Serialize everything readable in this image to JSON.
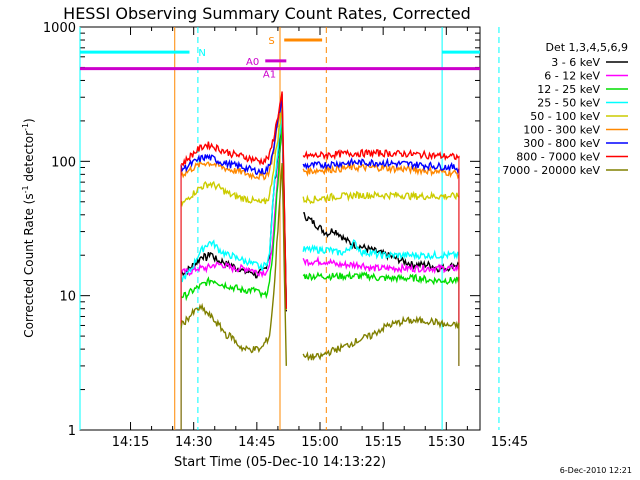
{
  "chart_data": {
    "type": "line",
    "title": "HESSI Observing Summary Count Rates, Corrected",
    "xlabel": "Start Time (05-Dec-10 14:13:22)",
    "ylabel_main": "Corrected Count Rate (s",
    "ylabel_sup1": "-1",
    "ylabel_mid": " detector",
    "ylabel_sup2": "-1",
    "ylabel_end": ")",
    "yscale": "log",
    "ylim": [
      1,
      1000
    ],
    "xlim_minutes": [
      -12,
      83
    ],
    "xticks": [
      {
        "minute": 0,
        "label": "14:15"
      },
      {
        "minute": 15,
        "label": "14:30"
      },
      {
        "minute": 30,
        "label": "14:45"
      },
      {
        "minute": 45,
        "label": "15:00"
      },
      {
        "minute": 60,
        "label": "15:15"
      },
      {
        "minute": 75,
        "label": "15:30"
      },
      {
        "minute": 90,
        "label": "15:45"
      }
    ],
    "yticks": [
      {
        "value": 1,
        "label": "1"
      },
      {
        "value": 10,
        "label": "10"
      },
      {
        "value": 100,
        "label": "100"
      },
      {
        "value": 1000,
        "label": "1000"
      }
    ],
    "legend_title": "Det 1,3,4,5,6,9",
    "legend_position": "right",
    "series": [
      {
        "name": "3 - 6 keV",
        "color": "#000000",
        "x": [
          12,
          13,
          14,
          15,
          16,
          17,
          18,
          19,
          20,
          21,
          22,
          23,
          24,
          25,
          26,
          27,
          28,
          29,
          30,
          31,
          32,
          33,
          34,
          36,
          37,
          40,
          41,
          42,
          43,
          44,
          45,
          46,
          47,
          48,
          49,
          50,
          51,
          52,
          53,
          55,
          57,
          59,
          61,
          63,
          65,
          67,
          69,
          71,
          73,
          75,
          77,
          78
        ],
        "y": [
          15,
          15,
          16,
          17,
          18,
          20,
          19,
          21,
          19,
          18,
          18,
          17,
          17,
          16,
          16,
          15,
          15,
          15,
          14,
          15,
          16,
          20,
          60,
          200,
          8,
          null,
          40,
          38,
          36,
          34,
          32,
          30,
          29,
          31,
          30,
          28,
          26,
          25,
          24,
          23,
          22,
          21,
          20,
          19,
          18,
          17,
          17,
          17,
          16,
          16,
          17,
          17
        ]
      },
      {
        "name": "6 - 12 keV",
        "color": "#ff00ff",
        "x": [
          12,
          14,
          16,
          18,
          20,
          22,
          24,
          26,
          28,
          30,
          32,
          33,
          34,
          36,
          37,
          40,
          41,
          43,
          45,
          47,
          49,
          51,
          53,
          55,
          57,
          59,
          61,
          63,
          65,
          67,
          69,
          71,
          73,
          75,
          77,
          78
        ],
        "y": [
          15,
          15,
          16,
          16,
          17,
          17,
          16,
          16,
          16,
          15,
          15,
          16,
          30,
          200,
          8,
          null,
          18,
          18,
          18,
          18,
          17,
          17,
          17,
          17,
          16,
          16,
          16,
          16,
          16,
          16,
          16,
          16,
          16,
          16,
          16,
          16
        ]
      },
      {
        "name": "12 - 25 keV",
        "color": "#00dd00",
        "x": [
          12,
          13,
          14,
          15,
          16,
          17,
          18,
          19,
          20,
          21,
          22,
          23,
          24,
          25,
          26,
          27,
          28,
          29,
          30,
          31,
          32,
          33,
          34,
          36,
          37,
          40,
          41,
          43,
          45,
          47,
          49,
          51,
          53,
          55,
          57,
          59,
          61,
          63,
          65,
          67,
          69,
          71,
          73,
          75,
          77,
          78
        ],
        "y": [
          10,
          10,
          10.5,
          11,
          11.5,
          12,
          12.5,
          13,
          13,
          12.5,
          12,
          12,
          11.5,
          11.5,
          11,
          11,
          11,
          11,
          11,
          10,
          10,
          12,
          25,
          200,
          8,
          null,
          14,
          14,
          14,
          14,
          14,
          14,
          14,
          14,
          14,
          13.5,
          13.5,
          13.5,
          13.5,
          13.5,
          13.5,
          13,
          13,
          13,
          13,
          13
        ]
      },
      {
        "name": "25 - 50 keV",
        "color": "#00ffff",
        "x": [
          12,
          13,
          14,
          15,
          16,
          17,
          18,
          19,
          20,
          21,
          22,
          23,
          24,
          25,
          26,
          27,
          28,
          29,
          30,
          31,
          32,
          33,
          34,
          36,
          37,
          40,
          41,
          43,
          45,
          47,
          49,
          51,
          53,
          55,
          57,
          59,
          61,
          63,
          65,
          67,
          69,
          71,
          73,
          75,
          77,
          78
        ],
        "y": [
          13,
          14,
          15,
          17,
          20,
          22,
          24,
          25,
          24,
          22,
          21,
          20,
          20,
          19,
          19,
          18,
          18,
          17,
          17,
          16,
          17,
          20,
          60,
          250,
          8,
          null,
          22,
          22,
          22,
          22,
          21,
          21,
          25,
          21,
          21,
          20,
          20,
          20,
          20,
          20,
          20,
          20,
          20,
          20,
          20,
          20
        ]
      },
      {
        "name": "50 - 100 keV",
        "color": "#cccc00",
        "x": [
          12,
          13,
          14,
          15,
          16,
          17,
          18,
          19,
          20,
          21,
          22,
          23,
          24,
          25,
          26,
          27,
          28,
          29,
          30,
          31,
          32,
          33,
          34,
          36,
          37,
          40,
          41,
          43,
          45,
          47,
          49,
          51,
          53,
          55,
          57,
          59,
          61,
          63,
          65,
          67,
          69,
          71,
          73,
          75,
          77,
          78
        ],
        "y": [
          48,
          50,
          55,
          58,
          62,
          65,
          67,
          68,
          66,
          64,
          61,
          58,
          56,
          55,
          54,
          53,
          52,
          51,
          50,
          49,
          50,
          55,
          90,
          250,
          8,
          null,
          52,
          52,
          53,
          54,
          55,
          55,
          56,
          56,
          56,
          56,
          56,
          56,
          56,
          55,
          55,
          55,
          55,
          55,
          55,
          55
        ]
      },
      {
        "name": "100 - 300 keV",
        "color": "#ff8800",
        "x": [
          12,
          13,
          14,
          15,
          16,
          17,
          18,
          19,
          20,
          21,
          22,
          23,
          24,
          25,
          26,
          27,
          28,
          29,
          30,
          31,
          32,
          33,
          34,
          36,
          37,
          40,
          41,
          43,
          45,
          47,
          49,
          51,
          53,
          55,
          57,
          59,
          61,
          63,
          65,
          67,
          69,
          71,
          73,
          75,
          77,
          78
        ],
        "y": [
          80,
          82,
          86,
          90,
          93,
          96,
          98,
          97,
          95,
          92,
          90,
          88,
          86,
          85,
          84,
          82,
          80,
          79,
          78,
          77,
          78,
          85,
          120,
          300,
          8,
          null,
          85,
          85,
          86,
          87,
          88,
          89,
          90,
          90,
          90,
          90,
          89,
          88,
          88,
          87,
          86,
          85,
          84,
          83,
          82,
          80
        ]
      },
      {
        "name": "300 - 800 keV",
        "color": "#0000ff",
        "x": [
          12,
          13,
          14,
          15,
          16,
          17,
          18,
          19,
          20,
          21,
          22,
          23,
          24,
          25,
          26,
          27,
          28,
          29,
          30,
          31,
          32,
          33,
          34,
          36,
          37,
          40,
          41,
          43,
          45,
          47,
          49,
          51,
          53,
          55,
          57,
          59,
          61,
          63,
          65,
          67,
          69,
          71,
          73,
          75,
          77,
          78
        ],
        "y": [
          88,
          90,
          94,
          98,
          102,
          106,
          108,
          106,
          104,
          100,
          98,
          96,
          94,
          93,
          92,
          90,
          88,
          86,
          85,
          84,
          85,
          92,
          130,
          300,
          8,
          null,
          93,
          93,
          94,
          95,
          96,
          97,
          98,
          98,
          98,
          98,
          97,
          96,
          96,
          95,
          94,
          93,
          92,
          91,
          90,
          88
        ]
      },
      {
        "name": "800 - 7000 keV",
        "color": "#ff0000",
        "x": [
          12,
          13,
          14,
          15,
          16,
          17,
          18,
          19,
          20,
          21,
          22,
          23,
          24,
          25,
          26,
          27,
          28,
          29,
          30,
          31,
          32,
          33,
          34,
          36,
          37,
          40,
          41,
          43,
          45,
          47,
          49,
          51,
          53,
          55,
          57,
          59,
          61,
          63,
          65,
          67,
          69,
          71,
          73,
          75,
          77,
          78
        ],
        "y": [
          95,
          100,
          108,
          115,
          122,
          128,
          133,
          132,
          128,
          124,
          120,
          117,
          114,
          112,
          110,
          108,
          106,
          104,
          102,
          100,
          102,
          110,
          150,
          320,
          8,
          null,
          110,
          110,
          111,
          112,
          113,
          114,
          115,
          115,
          115,
          115,
          115,
          114,
          114,
          113,
          112,
          111,
          110,
          109,
          108,
          106
        ]
      },
      {
        "name": "7000 - 20000 keV",
        "color": "#808000",
        "x": [
          12,
          13,
          14,
          15,
          16,
          17,
          18,
          19,
          20,
          21,
          22,
          23,
          24,
          25,
          26,
          27,
          28,
          29,
          30,
          31,
          32,
          33,
          34,
          36,
          37,
          40,
          41,
          43,
          45,
          47,
          49,
          51,
          53,
          55,
          57,
          59,
          61,
          63,
          65,
          67,
          69,
          71,
          73,
          75,
          77,
          78
        ],
        "y": [
          6,
          6.5,
          7,
          7.5,
          8,
          8,
          7.5,
          7,
          6.5,
          6,
          5.5,
          5,
          5,
          4.5,
          4.2,
          4,
          4,
          4,
          4,
          4,
          4.5,
          5,
          10,
          100,
          3,
          null,
          3.5,
          3.5,
          3.5,
          3.8,
          4,
          4.2,
          4.5,
          4.8,
          5,
          5.5,
          6,
          6.2,
          6.5,
          6.5,
          6.5,
          6.5,
          6.3,
          6,
          6,
          6
        ]
      }
    ],
    "vertical_lines": [
      {
        "minute": -12,
        "color": "#00ffff",
        "style": "solid"
      },
      {
        "minute": 16,
        "color": "#00ffff",
        "style": "dashed"
      },
      {
        "minute": 74,
        "color": "#00ffff",
        "style": "solid"
      },
      {
        "minute": 87.5,
        "color": "#00ffff",
        "style": "dashed"
      },
      {
        "minute": 10.5,
        "color": "#ff8800",
        "style": "solid"
      },
      {
        "minute": 35.5,
        "color": "#ff8800",
        "style": "solid"
      },
      {
        "minute": 46.5,
        "color": "#ff8800",
        "style": "dashed"
      }
    ],
    "annotations": [
      {
        "label": "N",
        "color": "#00ffff",
        "x_start": -12,
        "x_end": 14,
        "y": 650,
        "label_x": 17,
        "label_y": 650
      },
      {
        "label": "A0",
        "color": "#cc00cc",
        "x_start": 32,
        "x_end": 37,
        "y": 560,
        "label_x": 29,
        "label_y": 560
      },
      {
        "label": "A1",
        "color": "#cc00cc",
        "x_start": -12,
        "x_end": 83,
        "y": 490,
        "label_x": 33,
        "label_y": 450
      },
      {
        "label": "S",
        "color": "#ff8800",
        "x_start": 36.5,
        "x_end": 45.5,
        "y": 800,
        "label_x": 33.5,
        "label_y": 800
      },
      {
        "label": "",
        "color": "#00ffff",
        "x_start": 74,
        "x_end": 83,
        "y": 650,
        "label_x": null,
        "label_y": null
      }
    ],
    "timestamp": "6-Dec-2010 12:21"
  }
}
